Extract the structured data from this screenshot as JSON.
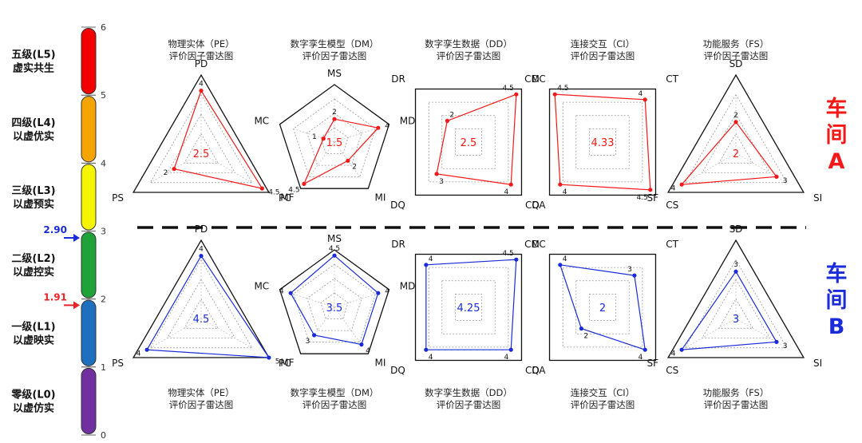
{
  "scale": {
    "ticks": [
      "0",
      "1",
      "2",
      "3",
      "4",
      "5",
      "6"
    ],
    "levels": [
      {
        "line1": "零级(L0)",
        "line2": "以虚仿实",
        "color": "#7030a0"
      },
      {
        "line1": "一级(L1)",
        "line2": "以虚映实",
        "color": "#1f6fbf"
      },
      {
        "line1": "二级(L2)",
        "line2": "以虚控实",
        "color": "#1fa339"
      },
      {
        "line1": "三级(L3)",
        "line2": "以虚预实",
        "color": "#f5f500"
      },
      {
        "line1": "四级(L4)",
        "line2": "以虚优实",
        "color": "#f5a500"
      },
      {
        "line1": "五级(L5)",
        "line2": "虚实共生",
        "color": "#f50000"
      }
    ],
    "markers": [
      {
        "value": 2.9,
        "label": "2.90",
        "color": "#1a2bd9"
      },
      {
        "value": 1.91,
        "label": "1.91",
        "color": "#e8232a"
      }
    ]
  },
  "workshops": [
    {
      "label_lines": [
        "车",
        "间",
        "A"
      ],
      "color": "#f51818"
    },
    {
      "label_lines": [
        "车",
        "间",
        "B"
      ],
      "color": "#1a2bd9"
    }
  ],
  "chart_data": [
    {
      "type": "radar",
      "workshop": "A",
      "title_line1": "物理实体（PE）",
      "title_line2": "评价因子雷达图",
      "axes": [
        "PD",
        "PC",
        "PS"
      ],
      "values": [
        4,
        4.5,
        2
      ],
      "value_labels": [
        "4",
        "4.5",
        "2"
      ],
      "average": "2.5",
      "max": 5
    },
    {
      "type": "radar",
      "workshop": "A",
      "title_line1": "数字孪生模型（DM）",
      "title_line2": "评价因子雷达图",
      "axes": [
        "MS",
        "MD",
        "MI",
        "MF",
        "MC"
      ],
      "values": [
        2,
        4,
        2,
        4.5,
        1
      ],
      "value_labels": [
        "2",
        "4",
        "2",
        "4.5",
        "1"
      ],
      "average": "1.5",
      "max": 5
    },
    {
      "type": "radar",
      "workshop": "A",
      "title_line1": "数字孪生数据（DD）",
      "title_line2": "评价因子雷达图",
      "axes": [
        "DC",
        "DA",
        "DQ",
        "DR"
      ],
      "values": [
        4.5,
        4,
        3,
        2
      ],
      "value_labels": [
        "4.5",
        "4",
        "3",
        "2"
      ],
      "average": "2.5",
      "max": 5
    },
    {
      "type": "radar",
      "workshop": "A",
      "title_line1": "连接交互（CI）",
      "title_line2": "评价因子雷达图",
      "axes": [
        "CT",
        "CS",
        "CQ",
        "CM"
      ],
      "values": [
        4,
        4.5,
        4,
        4.5
      ],
      "value_labels": [
        "4",
        "4.5",
        "4",
        "4.5"
      ],
      "average": "4.33",
      "max": 5
    },
    {
      "type": "radar",
      "workshop": "A",
      "title_line1": "功能服务（FS）",
      "title_line2": "评价因子雷达图",
      "axes": [
        "SD",
        "SI",
        "SF"
      ],
      "values": [
        2,
        3,
        4
      ],
      "value_labels": [
        "2",
        "3",
        "4"
      ],
      "average": "2",
      "max": 5
    },
    {
      "type": "radar",
      "workshop": "B",
      "title_line1": "物理实体（PE）",
      "title_line2": "评价因子雷达图",
      "axes": [
        "PD",
        "PC",
        "PS"
      ],
      "values": [
        4,
        5,
        4
      ],
      "value_labels": [
        "4",
        "5",
        "4"
      ],
      "average": "4.5",
      "max": 5
    },
    {
      "type": "radar",
      "workshop": "B",
      "title_line1": "数字孪生模型（DM）",
      "title_line2": "评价因子雷达图",
      "axes": [
        "MS",
        "MD",
        "MI",
        "MF",
        "MC"
      ],
      "values": [
        4.5,
        4,
        4,
        3,
        4
      ],
      "value_labels": [
        "4.5",
        "4",
        "4",
        "3",
        "4"
      ],
      "average": "3.5",
      "max": 5
    },
    {
      "type": "radar",
      "workshop": "B",
      "title_line1": "数字孪生数据（DD）",
      "title_line2": "评价因子雷达图",
      "axes": [
        "DC",
        "DA",
        "DQ",
        "DR"
      ],
      "values": [
        4.5,
        4,
        4,
        4
      ],
      "value_labels": [
        "4.5",
        "4",
        "4",
        "4"
      ],
      "average": "4.25",
      "max": 5
    },
    {
      "type": "radar",
      "workshop": "B",
      "title_line1": "连接交互（CI）",
      "title_line2": "评价因子雷达图",
      "axes": [
        "CT",
        "CS",
        "CQ",
        "CM"
      ],
      "values": [
        3,
        4,
        2,
        4
      ],
      "value_labels": [
        "3",
        "4",
        "2",
        "4"
      ],
      "average": "2",
      "max": 5
    },
    {
      "type": "radar",
      "workshop": "B",
      "title_line1": "功能服务（FS）",
      "title_line2": "评价因子雷达图",
      "axes": [
        "SD",
        "SI",
        "SF"
      ],
      "values": [
        3,
        3,
        4
      ],
      "value_labels": [
        "3",
        "3",
        "4"
      ],
      "average": "3",
      "max": 5
    }
  ]
}
